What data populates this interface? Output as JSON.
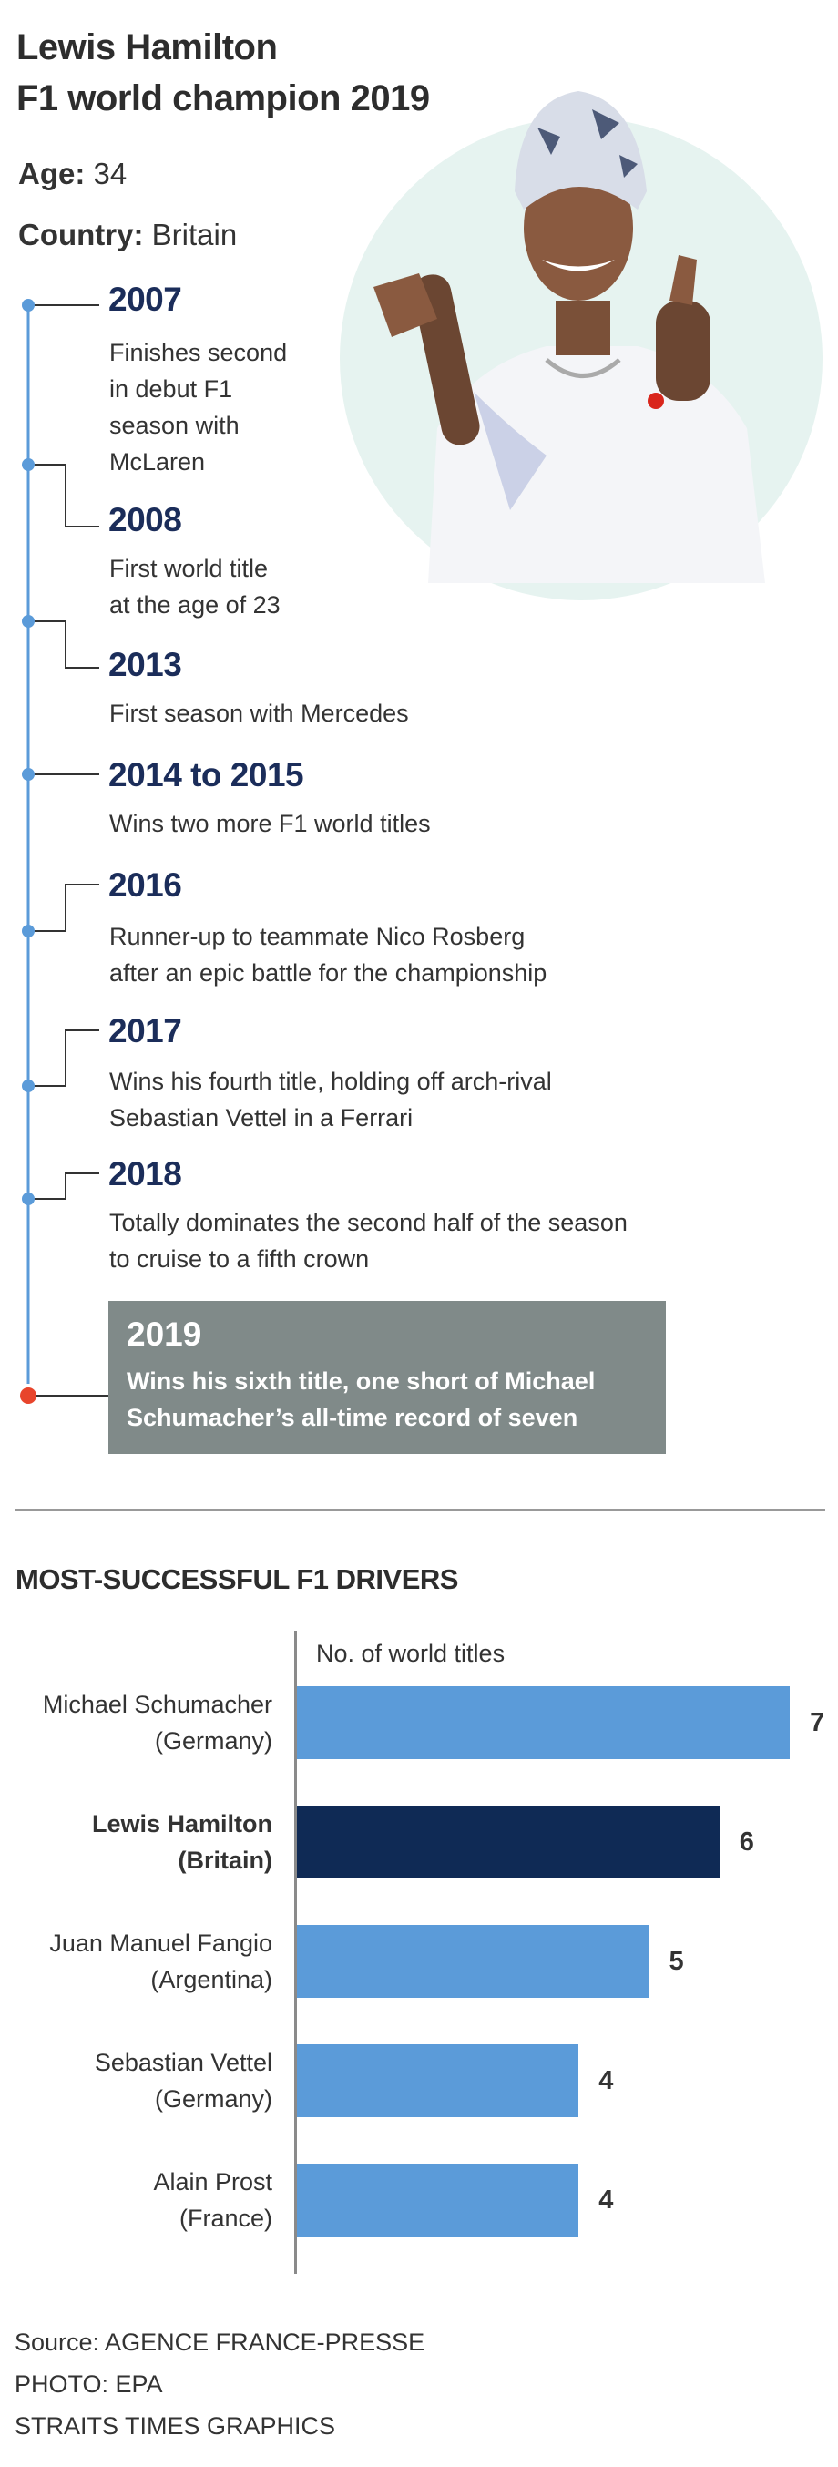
{
  "header": {
    "title_line1": "Lewis Hamilton",
    "title_line2": "F1 world champion 2019",
    "age_label": "Age:",
    "age_value": "34",
    "country_label": "Country:",
    "country_value": "Britain"
  },
  "photo": {
    "subject": "photo-of-lewis-hamilton",
    "circle_color": "#e6f3f0"
  },
  "timeline": {
    "line_color": "#5b9bd9",
    "highlight_dot_color": "#e8452c",
    "items": [
      {
        "year": "2007",
        "text": "Finishes second\nin debut F1\nseason with\nMcLaren"
      },
      {
        "year": "2008",
        "text": "First world title\nat the age of 23"
      },
      {
        "year": "2013",
        "text": "First season with Mercedes"
      },
      {
        "year": "2014 to 2015",
        "text": "Wins two more F1 world titles"
      },
      {
        "year": "2016",
        "text": "Runner-up to teammate Nico Rosberg\nafter an epic battle for the championship"
      },
      {
        "year": "2017",
        "text": "Wins his fourth title, holding off arch-rival\nSebastian Vettel in a Ferrari"
      },
      {
        "year": "2018",
        "text": "Totally dominates the second half of the season\nto cruise to a fifth crown"
      },
      {
        "year": "2019",
        "text": "Wins his sixth title, one short of Michael\nSchumacher’s all-time record of seven"
      }
    ]
  },
  "chart_data": {
    "type": "bar",
    "orientation": "horizontal",
    "title": "MOST-SUCCESSFUL F1 DRIVERS",
    "xlabel": "No. of world titles",
    "categories": [
      "Michael Schumacher\n(Germany)",
      "Lewis Hamilton\n(Britain)",
      "Juan Manuel Fangio\n(Argentina)",
      "Sebastian Vettel\n(Germany)",
      "Alain Prost\n(France)"
    ],
    "values": [
      7,
      6,
      5,
      4,
      4
    ],
    "highlight_index": 1,
    "colors": {
      "default": "#5b9bd9",
      "highlight": "#0f2a55"
    },
    "xlim": [
      0,
      7
    ],
    "grid": false
  },
  "footer": {
    "source": "Source: AGENCE FRANCE-PRESSE",
    "photo_credit": "PHOTO: EPA",
    "credit": "STRAITS TIMES GRAPHICS"
  }
}
